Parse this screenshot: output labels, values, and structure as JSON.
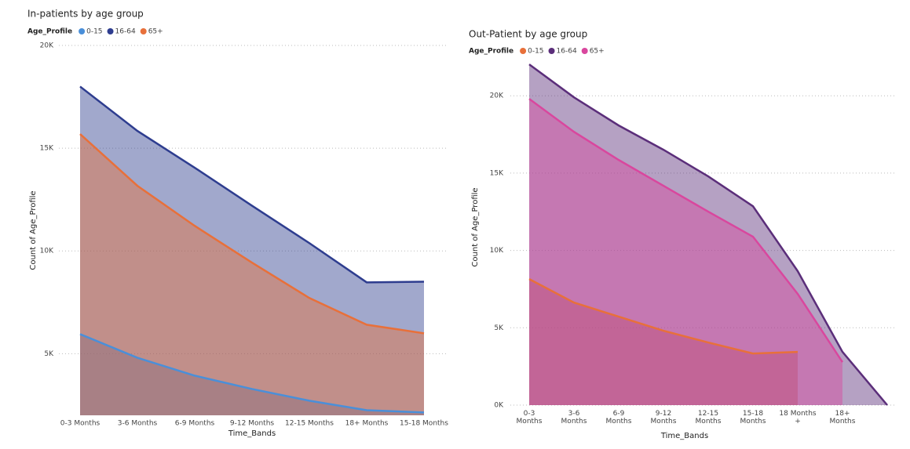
{
  "chart_data": [
    {
      "type": "area",
      "title": "In-patients by age group",
      "legend_title": "Age_Profile",
      "x_label": "Time_Bands",
      "y_label": "Count of Age_Profile",
      "categories": [
        "0-3 Months",
        "3-6 Months",
        "6-9 Months",
        "9-12 Months",
        "12-15 Months",
        "18+ Months",
        "15-18 Months"
      ],
      "series": [
        {
          "name": "0-15",
          "color": "#4a8fd9",
          "values": [
            5950,
            4800,
            3930,
            3280,
            2710,
            2250,
            2140
          ]
        },
        {
          "name": "16-64",
          "color": "#2e3d8f",
          "values": [
            18000,
            15840,
            14050,
            12200,
            10380,
            8470,
            8500
          ]
        },
        {
          "name": "65+",
          "color": "#e8703a",
          "values": [
            15690,
            13170,
            11220,
            9430,
            7710,
            6410,
            5990
          ]
        }
      ],
      "ylim": [
        2000,
        20000
      ],
      "yticks": [
        {
          "value": 5000,
          "label": "5K"
        },
        {
          "value": 10000,
          "label": "10K"
        },
        {
          "value": 15000,
          "label": "15K"
        },
        {
          "value": 20000,
          "label": "20K"
        }
      ],
      "grid": true,
      "legend": "top-left"
    },
    {
      "type": "area",
      "title": "Out-Patient by age group",
      "legend_title": "Age_Profile",
      "x_label": "Time_Bands",
      "y_label": "Count of Age_Profile",
      "categories": [
        "0-3 Months",
        "3-6 Months",
        "6-9 Months",
        "9-12 Months",
        "12-15 Months",
        "15-18 Months",
        "18 Months +",
        "18+ Months",
        null
      ],
      "series": [
        {
          "name": "0-15",
          "color": "#e8703a",
          "values": [
            8150,
            6630,
            5720,
            4810,
            4050,
            3340,
            3440,
            null,
            null
          ]
        },
        {
          "name": "16-64",
          "color": "#5b2e7a",
          "values": [
            22030,
            19900,
            18080,
            16510,
            14790,
            12860,
            8660,
            3440,
            0
          ]
        },
        {
          "name": "65+",
          "color": "#d9479e",
          "values": [
            19800,
            17670,
            15850,
            14180,
            12510,
            10890,
            7190,
            2780,
            null
          ]
        }
      ],
      "ylim": [
        0,
        23000
      ],
      "yticks": [
        {
          "value": 0,
          "label": "0K"
        },
        {
          "value": 5000,
          "label": "5K"
        },
        {
          "value": 10000,
          "label": "10K"
        },
        {
          "value": 15000,
          "label": "15K"
        },
        {
          "value": 20000,
          "label": "20K"
        }
      ],
      "grid": true,
      "legend": "top-left"
    }
  ]
}
